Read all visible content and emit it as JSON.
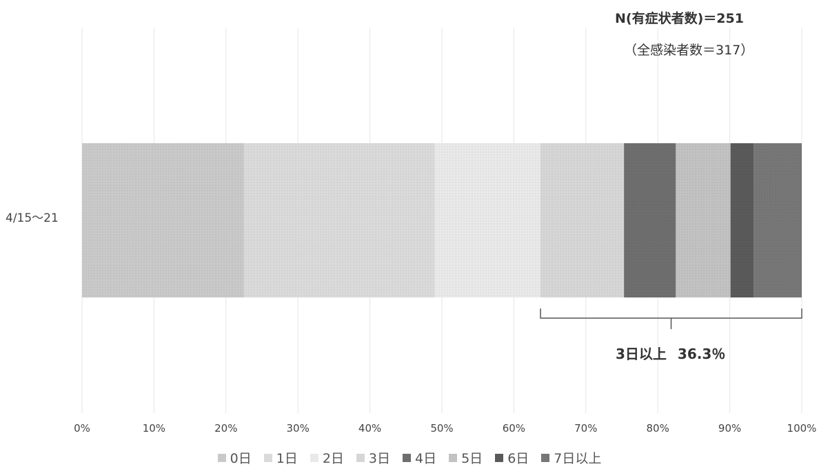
{
  "notes": {
    "n_symptomatic": "N(有症状者数)＝251",
    "total_infected": "（全感染者数＝317）",
    "bracket_label": "3日以上",
    "bracket_pct": "36.3％"
  },
  "colors": {
    "0日": "#c9c9c9",
    "1日": "#dadada",
    "2日": "#e9e9e9",
    "3日": "#d6d6d6",
    "4日": "#6e6e6e",
    "5日": "#c2c2c2",
    "6日": "#5a5a5a",
    "7日以上": "#777777"
  },
  "chart_data": {
    "type": "bar",
    "orientation": "horizontal",
    "stacked": "percent",
    "categories": [
      "4/15～21"
    ],
    "series": [
      {
        "name": "0日",
        "values": [
          22.5
        ]
      },
      {
        "name": "1日",
        "values": [
          26.5
        ]
      },
      {
        "name": "2日",
        "values": [
          14.7
        ]
      },
      {
        "name": "3日",
        "values": [
          11.6
        ]
      },
      {
        "name": "4日",
        "values": [
          7.2
        ]
      },
      {
        "name": "5日",
        "values": [
          7.6
        ]
      },
      {
        "name": "6日",
        "values": [
          3.2
        ]
      },
      {
        "name": "7日以上",
        "values": [
          6.7
        ]
      }
    ],
    "xlim": [
      0,
      100
    ],
    "xticks": [
      "0%",
      "10%",
      "20%",
      "30%",
      "40%",
      "50%",
      "60%",
      "70%",
      "80%",
      "90%",
      "100%"
    ],
    "grid": true,
    "legend": "bottom"
  }
}
